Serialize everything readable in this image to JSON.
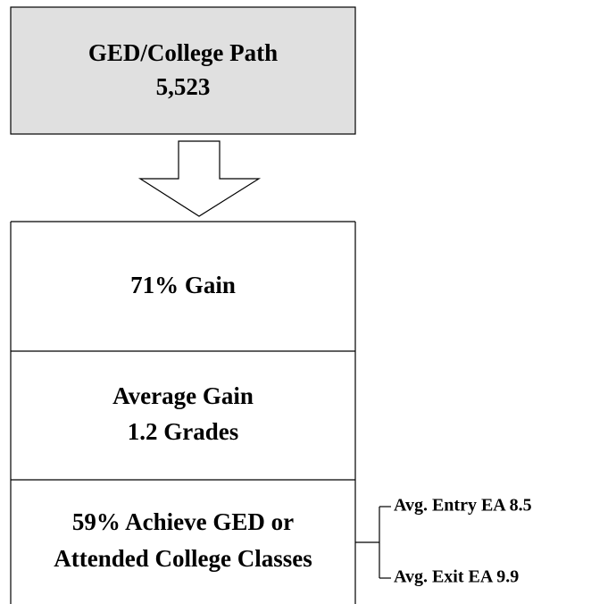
{
  "top_box": {
    "lines": [
      "GED/College Path",
      "5,523"
    ]
  },
  "sections": [
    {
      "lines": [
        "71% Gain"
      ]
    },
    {
      "lines": [
        "Average Gain",
        "1.2 Grades"
      ]
    },
    {
      "lines": [
        "59% Achieve GED or",
        "Attended College Classes"
      ]
    }
  ],
  "branches": [
    "Avg. Entry EA 8.5",
    "Avg. Exit EA 9.9"
  ]
}
